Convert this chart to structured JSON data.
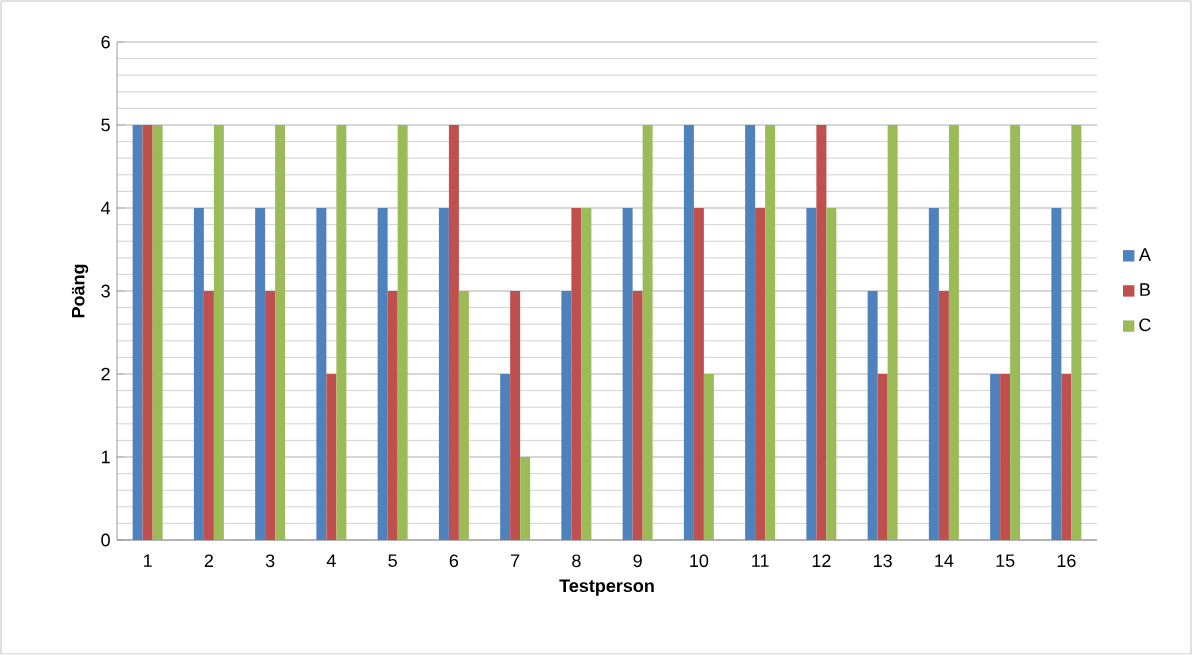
{
  "chart_data": {
    "type": "bar",
    "xlabel": "Testperson",
    "ylabel": "Poäng",
    "categories": [
      "1",
      "2",
      "3",
      "4",
      "5",
      "6",
      "7",
      "8",
      "9",
      "10",
      "11",
      "12",
      "13",
      "14",
      "15",
      "16"
    ],
    "series": [
      {
        "name": "A",
        "color": "#4f81bd",
        "values": [
          5,
          4,
          4,
          4,
          4,
          4,
          2,
          3,
          4,
          5,
          5,
          4,
          3,
          4,
          2,
          4
        ]
      },
      {
        "name": "B",
        "color": "#c0504d",
        "values": [
          5,
          3,
          3,
          2,
          3,
          5,
          3,
          4,
          3,
          4,
          4,
          5,
          2,
          3,
          2,
          2
        ]
      },
      {
        "name": "C",
        "color": "#9bbb59",
        "values": [
          5,
          5,
          5,
          5,
          5,
          3,
          1,
          4,
          5,
          2,
          5,
          4,
          5,
          5,
          5,
          5
        ]
      }
    ],
    "ylim": [
      0,
      6
    ],
    "yticks": [
      0,
      1,
      2,
      3,
      4,
      5,
      6
    ],
    "grid": "y",
    "legend": "right"
  }
}
